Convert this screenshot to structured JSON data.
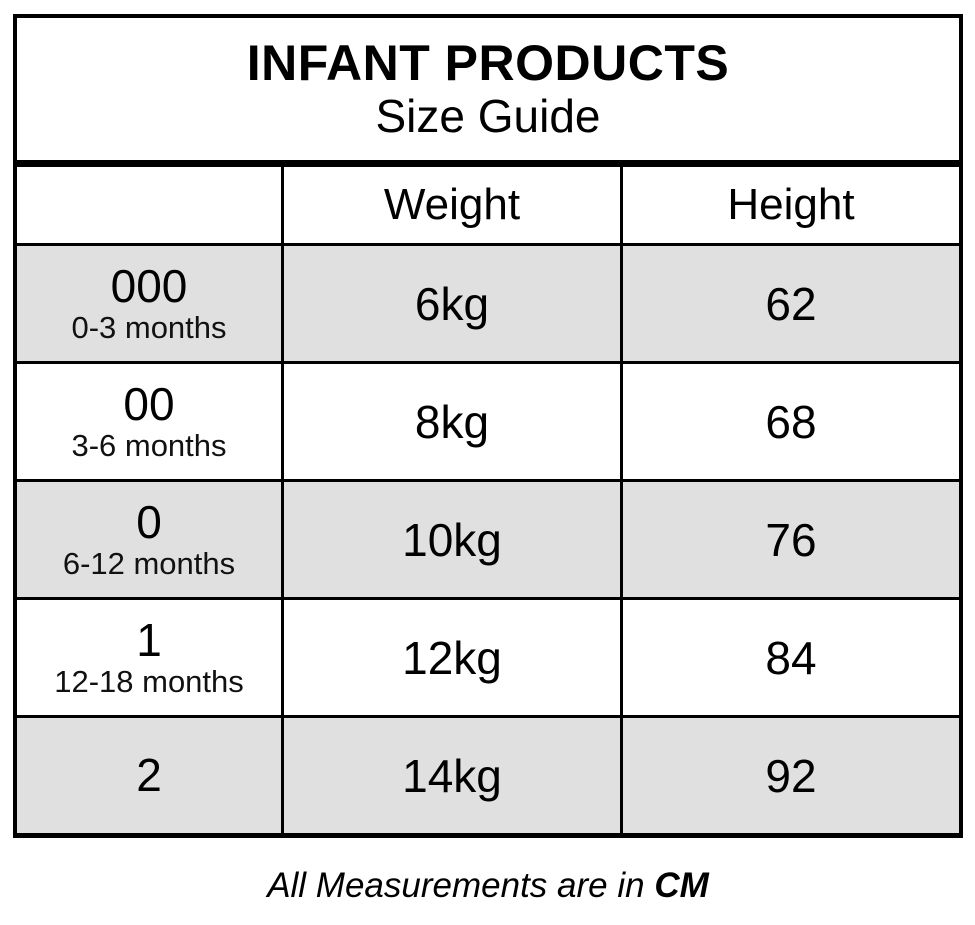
{
  "title": {
    "line1": "INFANT PRODUCTS",
    "line2": "Size Guide"
  },
  "table": {
    "headers": {
      "size": "",
      "weight": "Weight",
      "height": "Height"
    },
    "rows": [
      {
        "size": "000",
        "age": "0-3 months",
        "weight": "6kg",
        "height": "62"
      },
      {
        "size": "00",
        "age": "3-6 months",
        "weight": "8kg",
        "height": "68"
      },
      {
        "size": "0",
        "age": "6-12 months",
        "weight": "10kg",
        "height": "76"
      },
      {
        "size": "1",
        "age": "12-18 months",
        "weight": "12kg",
        "height": "84"
      },
      {
        "size": "2",
        "age": "",
        "weight": "14kg",
        "height": "92"
      }
    ]
  },
  "footer": {
    "text": "All Measurements are in",
    "unit": "CM"
  },
  "colors": {
    "shaded_row": "#e0e0e0",
    "border": "#000000",
    "background": "#ffffff"
  }
}
